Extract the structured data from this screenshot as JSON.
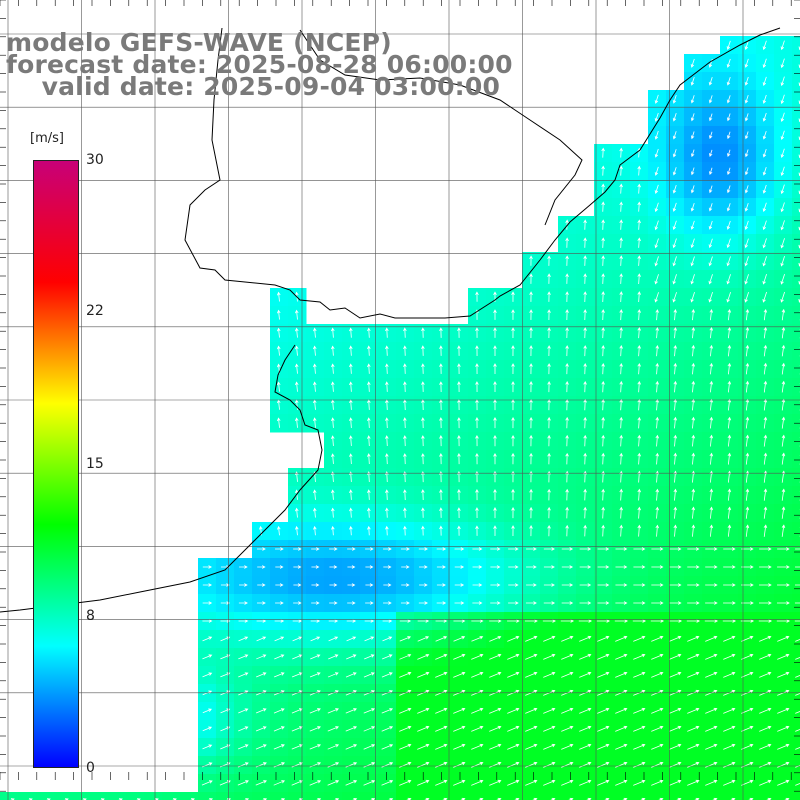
{
  "header": {
    "line1": "modelo GEFS-WAVE (NCEP)",
    "line2": "forecast date: 2025-08-28 06:00:00",
    "line3": "    valid date: 2025-09-04 03:00:00"
  },
  "colorbar": {
    "unit": "[m/s]",
    "ticks": [
      "30",
      "22",
      "15",
      "8",
      "0"
    ],
    "range": [
      0,
      30
    ],
    "colors": [
      "#0000ff",
      "#00ffff",
      "#00ff00",
      "#ffff00",
      "#ff0000",
      "#c80078"
    ]
  },
  "map": {
    "land_color": "#ffffff",
    "coast_color": "#000000",
    "grid": true,
    "arrow_color": "#ffffff"
  }
}
